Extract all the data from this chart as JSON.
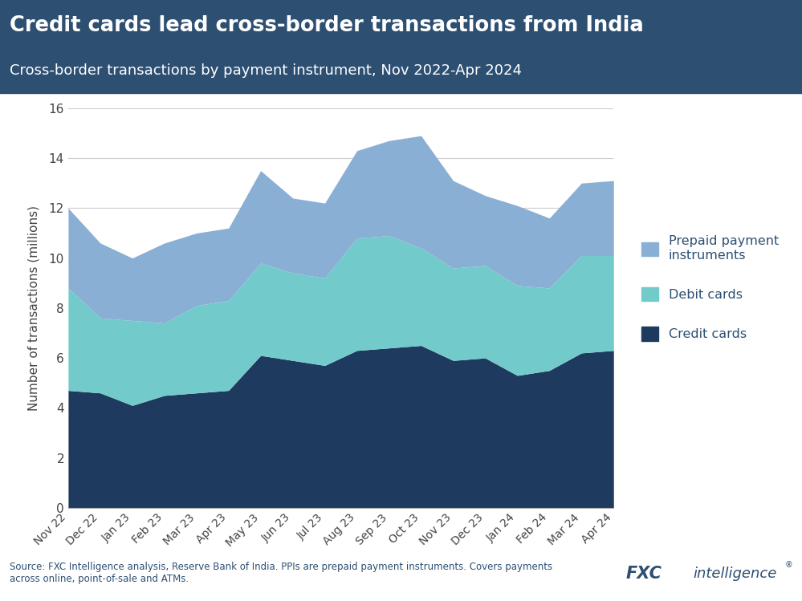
{
  "title": "Credit cards lead cross-border transactions from India",
  "subtitle": "Cross-border transactions by payment instrument, Nov 2022-Apr 2024",
  "ylabel": "Number of transactions (millions)",
  "source": "Source: FXC Intelligence analysis, Reserve Bank of India. PPIs are prepaid payment instruments. Covers payments\nacross online, point-of-sale and ATMs.",
  "x_labels": [
    "Nov 22",
    "Dec 22",
    "Jan 23",
    "Feb 23",
    "Mar 23",
    "Apr 23",
    "May 23",
    "Jun 23",
    "Jul 23",
    "Aug 23",
    "Sep 23",
    "Oct 23",
    "Nov 23",
    "Dec 23",
    "Jan 24",
    "Feb 24",
    "Mar 24",
    "Apr 24"
  ],
  "credit_cards": [
    4.7,
    4.6,
    4.1,
    4.5,
    4.6,
    4.7,
    6.1,
    5.9,
    5.7,
    6.3,
    6.4,
    6.5,
    5.9,
    6.0,
    5.3,
    5.5,
    6.2,
    6.3
  ],
  "debit_cards": [
    4.1,
    3.0,
    3.4,
    2.9,
    3.5,
    3.6,
    3.7,
    3.5,
    3.5,
    4.5,
    4.5,
    3.9,
    3.7,
    3.7,
    3.6,
    3.3,
    3.9,
    3.8
  ],
  "prepaid": [
    3.2,
    3.0,
    2.5,
    3.2,
    2.9,
    2.9,
    3.7,
    3.0,
    3.0,
    3.5,
    3.8,
    4.5,
    3.5,
    2.8,
    3.2,
    2.8,
    2.9,
    3.0
  ],
  "colors": {
    "credit_cards": "#1e3a5f",
    "debit_cards": "#72caca",
    "prepaid": "#8aafd4"
  },
  "header_bg": "#2d4f72",
  "title_color": "#ffffff",
  "subtitle_color": "#ffffff",
  "ylim": [
    0,
    16
  ],
  "yticks": [
    0,
    2,
    4,
    6,
    8,
    10,
    12,
    14,
    16
  ],
  "source_color": "#2d4f72",
  "legend_labels": [
    "Prepaid payment\ninstruments",
    "Debit cards",
    "Credit cards"
  ]
}
